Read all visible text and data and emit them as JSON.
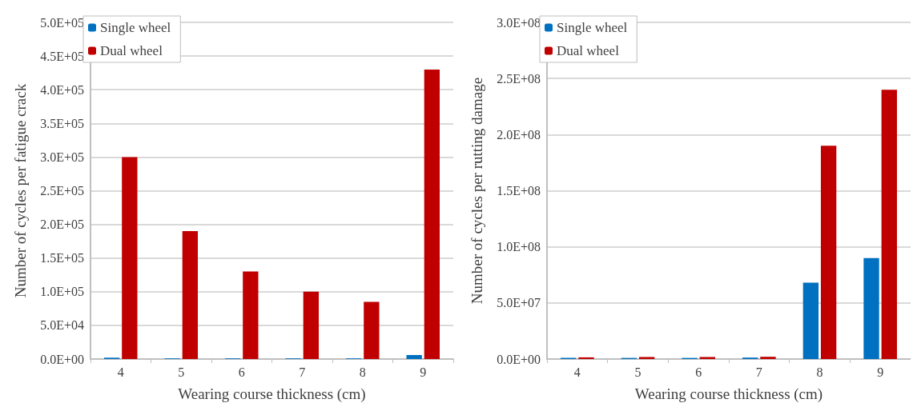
{
  "chart_data": [
    {
      "type": "bar",
      "xlabel": "Wearing course thickness (cm)",
      "ylabel": "Number of cycles per fatigue crack",
      "categories": [
        "4",
        "5",
        "6",
        "7",
        "8",
        "9"
      ],
      "series": [
        {
          "name": "Single wheel",
          "color": "#0070c0",
          "values": [
            2000,
            1000,
            1000,
            1000,
            1000,
            6000
          ]
        },
        {
          "name": "Dual wheel",
          "color": "#c00000",
          "values": [
            300000,
            190000,
            130000,
            100000,
            85000,
            430000
          ]
        }
      ],
      "ylim": [
        0,
        500000
      ],
      "yticks": [
        {
          "value": 0,
          "label": "0.0E+00"
        },
        {
          "value": 50000,
          "label": "5.0E+04"
        },
        {
          "value": 100000,
          "label": "1.0E+05"
        },
        {
          "value": 150000,
          "label": "1.5E+05"
        },
        {
          "value": 200000,
          "label": "2.0E+05"
        },
        {
          "value": 250000,
          "label": "2.5E+05"
        },
        {
          "value": 300000,
          "label": "3.0E+05"
        },
        {
          "value": 350000,
          "label": "3.5E+05"
        },
        {
          "value": 400000,
          "label": "4.0E+05"
        },
        {
          "value": 450000,
          "label": "4.5E+05"
        },
        {
          "value": 500000,
          "label": "5.0E+05"
        }
      ],
      "grid": "y",
      "legend": "top left"
    },
    {
      "type": "bar",
      "xlabel": "Wearing course thickness (cm)",
      "ylabel": "Number of cycles per rutting damage",
      "categories": [
        "4",
        "5",
        "6",
        "7",
        "8",
        "9"
      ],
      "series": [
        {
          "name": "Single wheel",
          "color": "#0070c0",
          "values": [
            1000000,
            1000000,
            1000000,
            1300000,
            68000000,
            90000000
          ]
        },
        {
          "name": "Dual wheel",
          "color": "#c00000",
          "values": [
            1500000,
            1800000,
            1800000,
            2000000,
            190000000,
            240000000
          ]
        }
      ],
      "ylim": [
        0,
        300000000
      ],
      "yticks": [
        {
          "value": 0,
          "label": "0.0E+00"
        },
        {
          "value": 50000000,
          "label": "5.0E+07"
        },
        {
          "value": 100000000,
          "label": "1.0E+08"
        },
        {
          "value": 150000000,
          "label": "1.5E+08"
        },
        {
          "value": 200000000,
          "label": "2.0E+08"
        },
        {
          "value": 250000000,
          "label": "2.5E+08"
        },
        {
          "value": 300000000,
          "label": "3.0E+08"
        }
      ],
      "grid": "y",
      "legend": "top left"
    }
  ]
}
